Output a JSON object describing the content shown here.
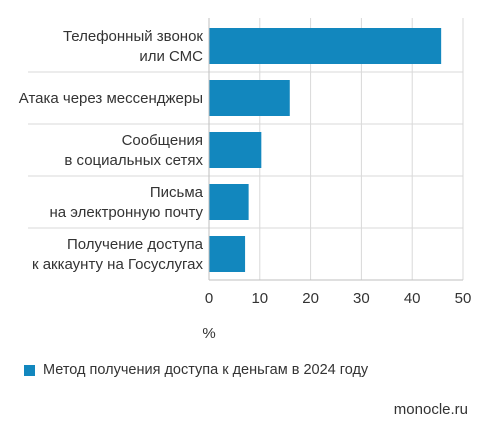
{
  "chart_data": {
    "type": "bar",
    "orientation": "horizontal",
    "categories": [
      [
        "Телефонный звонок",
        "или СМС"
      ],
      [
        "Атака через мессенджеры"
      ],
      [
        "Сообщения",
        "в социальных сетях"
      ],
      [
        "Письма",
        "на электронную почту"
      ],
      [
        "Получение доступа",
        "к аккаунту на Госуслугах"
      ]
    ],
    "values": [
      45.7,
      15.9,
      10.3,
      7.8,
      7.1
    ],
    "xlabel": "%",
    "xlim": [
      0,
      50
    ],
    "xticks": [
      0,
      10,
      20,
      30,
      40,
      50
    ],
    "series": [
      {
        "name": "Метод получения доступа к деньгам в 2024 году",
        "color": "#1287be"
      }
    ],
    "grid": true,
    "legend_position": "bottom-left"
  },
  "legend": {
    "label": "Метод получения доступа к деньгам в 2024 году"
  },
  "source": "monocle.ru",
  "colors": {
    "bar": "#1287be",
    "grid": "#d9d9d9",
    "axis": "#bfbfbf",
    "text": "#333333"
  }
}
